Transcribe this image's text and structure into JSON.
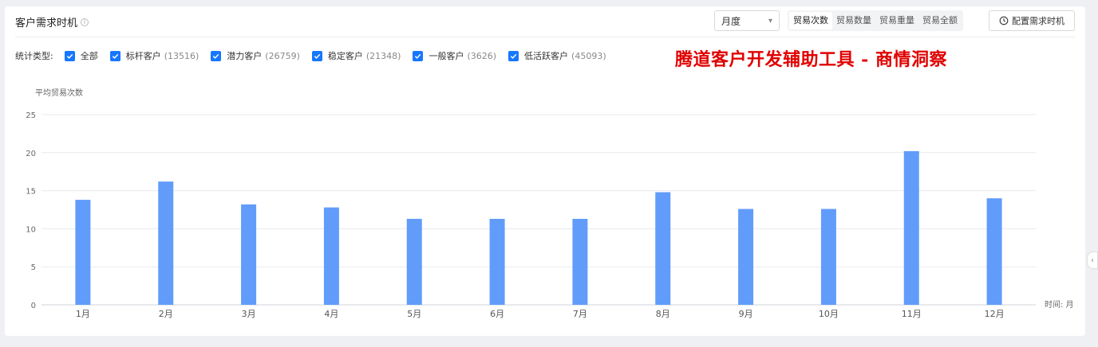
{
  "header": {
    "title": "客户需求时机",
    "period": "月度",
    "metric_tabs": [
      "贸易次数",
      "贸易数量",
      "贸易重量",
      "贸易全额"
    ],
    "active_tab": 0,
    "config_label": "配置需求时机"
  },
  "filters": {
    "label": "统计类型:",
    "items": [
      {
        "label": "全部",
        "count": ""
      },
      {
        "label": "标杆客户",
        "count": "(13516)"
      },
      {
        "label": "潜力客户",
        "count": "(26759)"
      },
      {
        "label": "稳定客户",
        "count": "(21348)"
      },
      {
        "label": "一般客户",
        "count": "(3626)"
      },
      {
        "label": "低活跃客户",
        "count": "(45093)"
      }
    ]
  },
  "banner": "腾道客户开发辅助工具 - 商情洞察",
  "chart_data": {
    "type": "bar",
    "ylabel": "平均贸易次数",
    "xlabel": "时间: 月",
    "ylim": [
      0,
      25
    ],
    "yticks": [
      0,
      5,
      10,
      15,
      20,
      25
    ],
    "grid": true,
    "color": "#619cfb",
    "categories": [
      "1月",
      "2月",
      "3月",
      "4月",
      "5月",
      "6月",
      "7月",
      "8月",
      "9月",
      "10月",
      "11月",
      "12月"
    ],
    "values": [
      13.8,
      16.2,
      13.2,
      12.8,
      11.3,
      11.3,
      11.3,
      14.8,
      12.6,
      12.6,
      20.2,
      14.0
    ]
  }
}
